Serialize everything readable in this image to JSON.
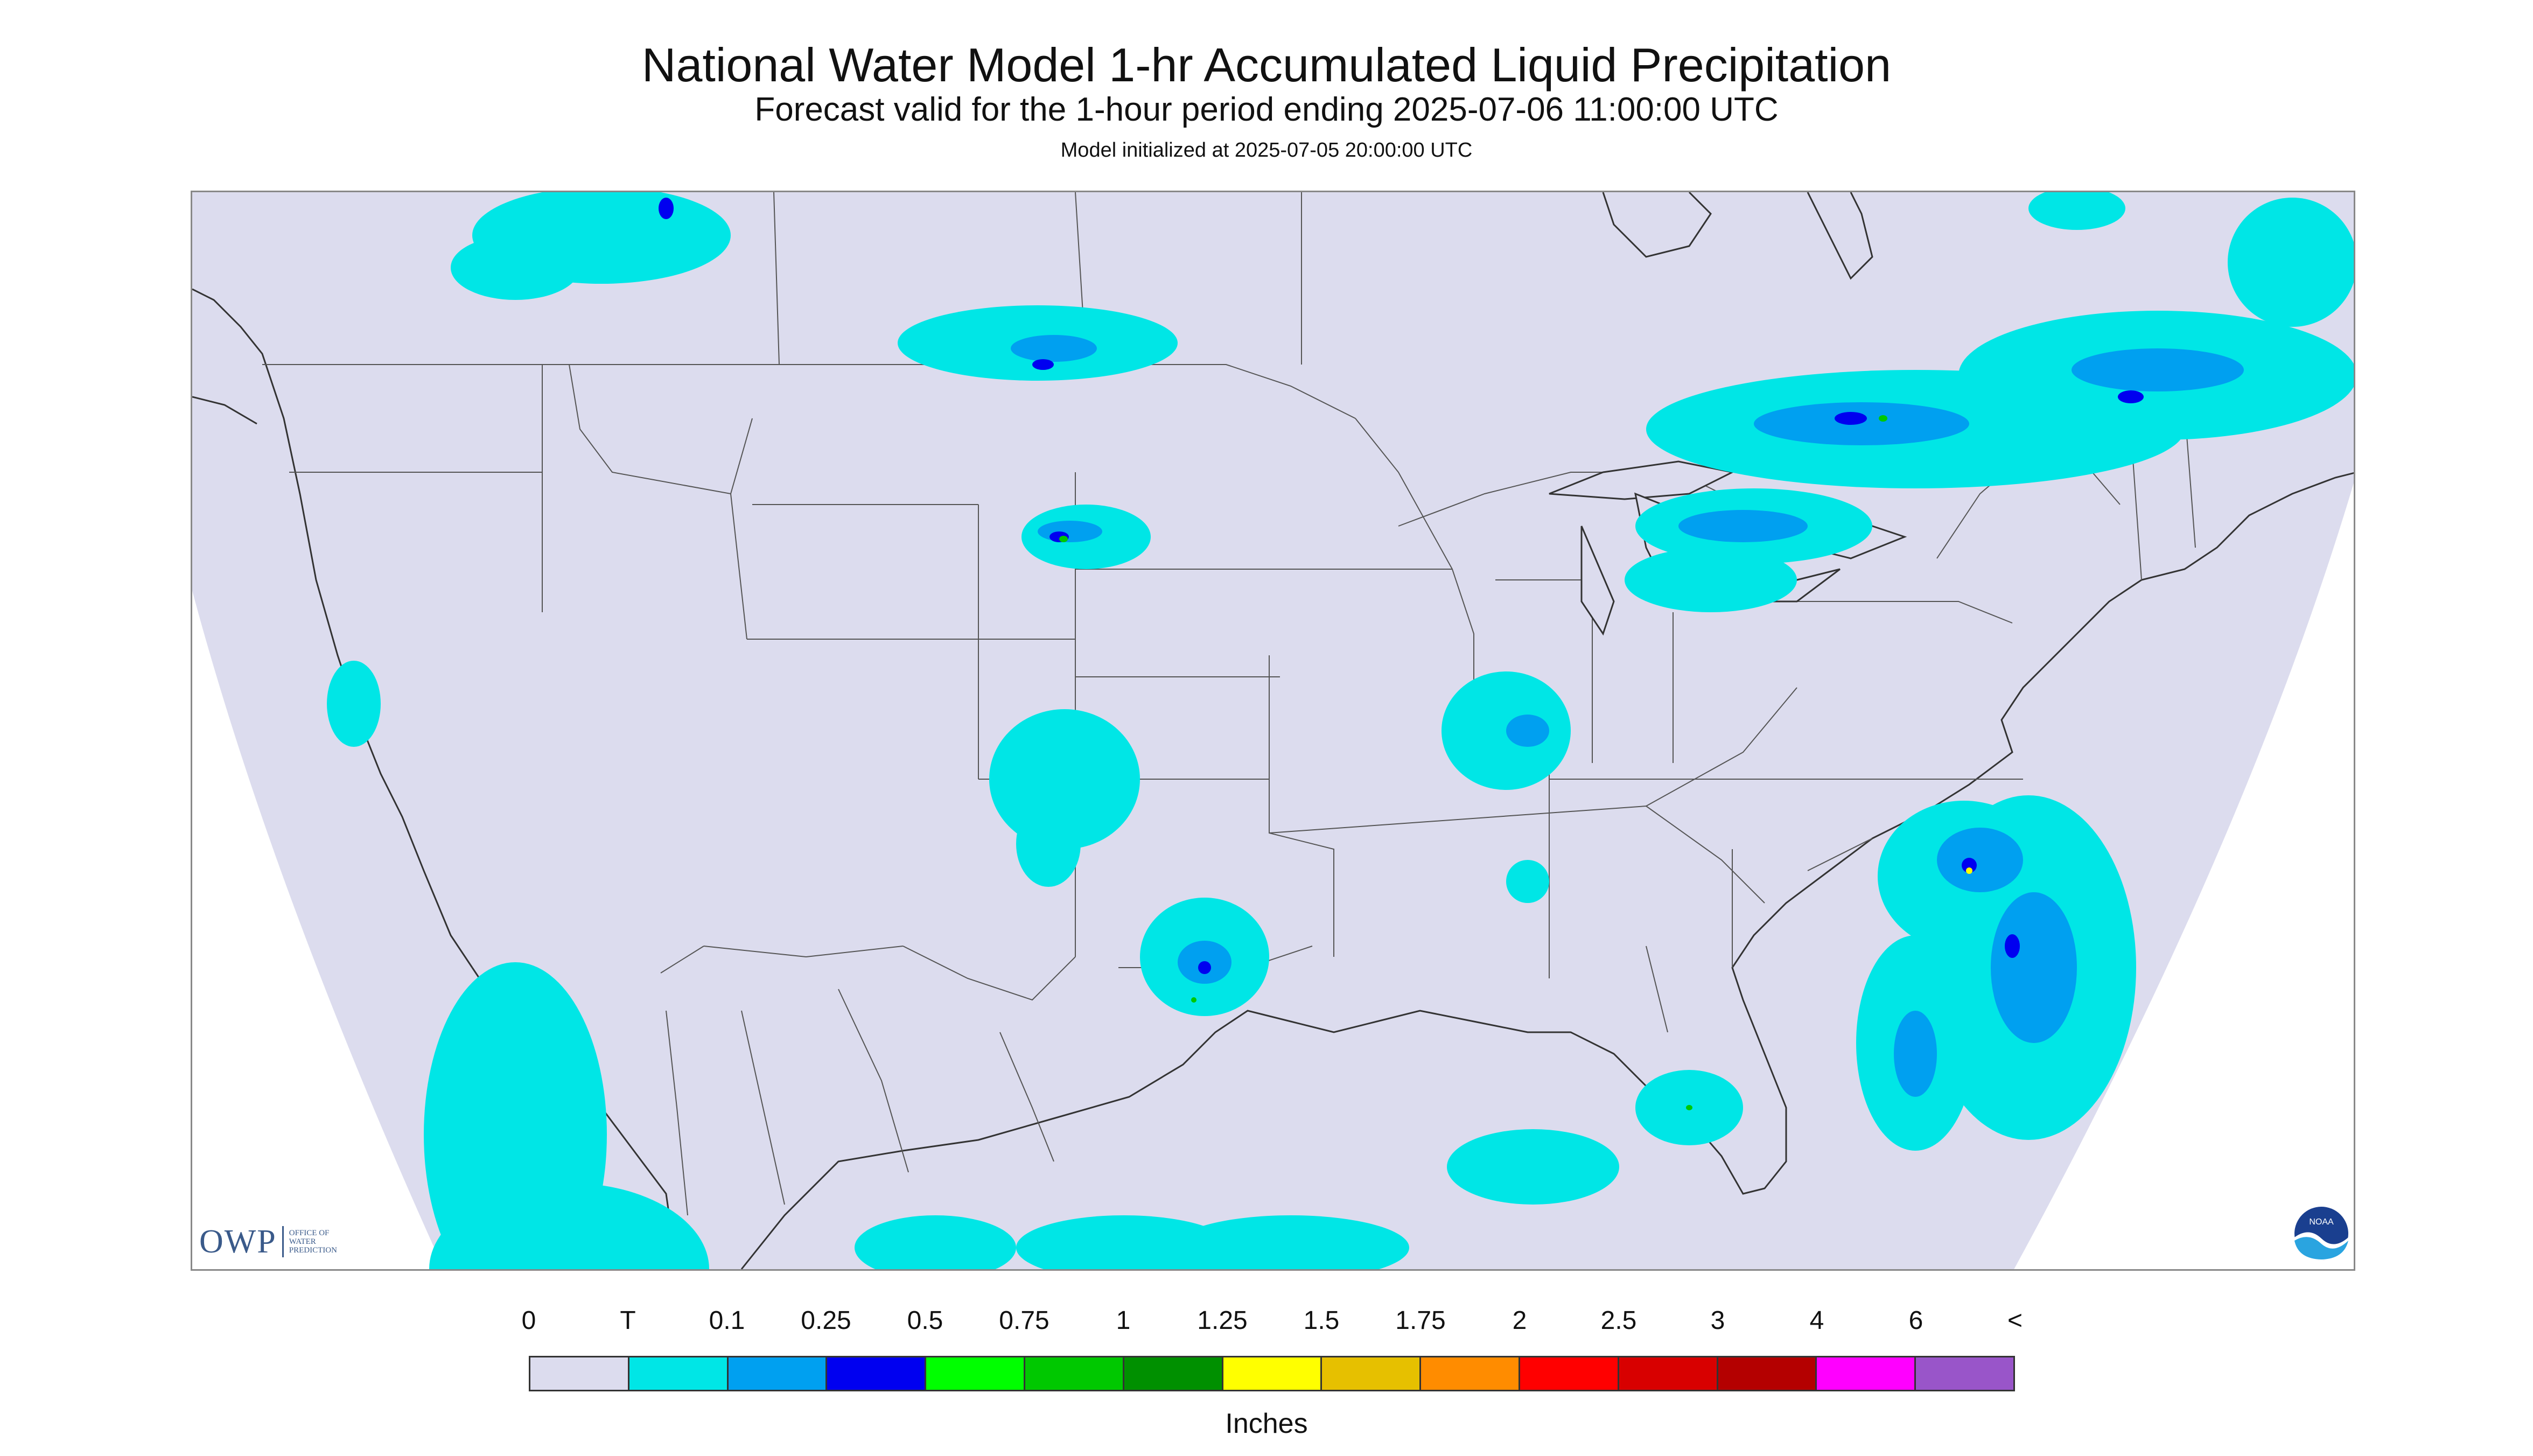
{
  "title": "National Water Model 1-hr Accumulated Liquid Precipitation",
  "subtitle": "Forecast valid for the 1-hour period ending 2025-07-06 11:00:00 UTC",
  "init_text": "Model initialized at 2025-07-05 20:00:00 UTC",
  "logo": {
    "text": "OWP",
    "subtext": [
      "OFFICE OF",
      "WATER",
      "PREDICTION"
    ],
    "noaa_text": "NOAA"
  },
  "legend": {
    "units": "Inches",
    "ticks": [
      "0",
      "T",
      "0.1",
      "0.25",
      "0.5",
      "0.75",
      "1",
      "1.25",
      "1.5",
      "1.75",
      "2",
      "2.5",
      "3",
      "4",
      "6",
      "<"
    ],
    "colors": [
      "#dcdcee",
      "#00e6e6",
      "#00a0f0",
      "#0000f0",
      "#00ff00",
      "#00c800",
      "#009000",
      "#ffff00",
      "#e6c000",
      "#ff8c00",
      "#ff0000",
      "#d80000",
      "#b40000",
      "#ff00ff",
      "#9955c9"
    ]
  },
  "colors": {
    "map_fill": "#dcdcee",
    "trace": "#00e6e6",
    "light": "#00a0f0",
    "blue": "#0000f0",
    "green": "#00c800",
    "yellow": "#ffff00",
    "boundary": "#333333",
    "offmap": "#ffffff"
  }
}
